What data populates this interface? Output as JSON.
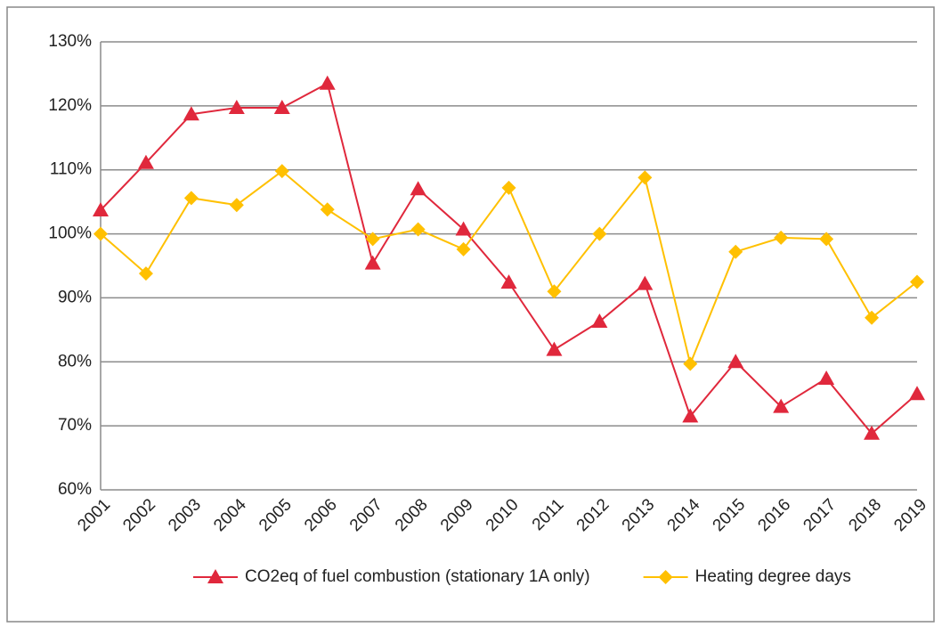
{
  "chart_data": {
    "type": "line",
    "categories": [
      "2001",
      "2002",
      "2003",
      "2004",
      "2005",
      "2006",
      "2007",
      "2008",
      "2009",
      "2010",
      "2011",
      "2012",
      "2013",
      "2014",
      "2015",
      "2016",
      "2017",
      "2018",
      "2019"
    ],
    "series": [
      {
        "name": "CO2eq of fuel combustion (stationary 1A only)",
        "color": "#e0283c",
        "marker": "triangle",
        "values": [
          103.7,
          111.1,
          118.7,
          119.7,
          119.7,
          123.5,
          95.4,
          107,
          100.7,
          92.4,
          81.9,
          86.3,
          92.2,
          71.5,
          80,
          73,
          77.4,
          68.8,
          75
        ]
      },
      {
        "name": "Heating degree days",
        "color": "#ffc000",
        "marker": "diamond",
        "values": [
          100,
          93.8,
          105.6,
          104.5,
          109.8,
          103.8,
          99.2,
          100.7,
          97.6,
          107.2,
          91,
          100,
          108.8,
          79.7,
          97.2,
          99.4,
          99.2,
          86.9,
          92.5
        ]
      }
    ],
    "ylim": [
      60,
      130
    ],
    "yticks": [
      {
        "value": 60,
        "label": "60%"
      },
      {
        "value": 70,
        "label": "70%"
      },
      {
        "value": 80,
        "label": "80%"
      },
      {
        "value": 90,
        "label": "90%"
      },
      {
        "value": 100,
        "label": "100%"
      },
      {
        "value": 110,
        "label": "110%"
      },
      {
        "value": 120,
        "label": "120%"
      },
      {
        "value": 130,
        "label": "130%"
      }
    ],
    "grid": true,
    "legend": "bottom"
  }
}
